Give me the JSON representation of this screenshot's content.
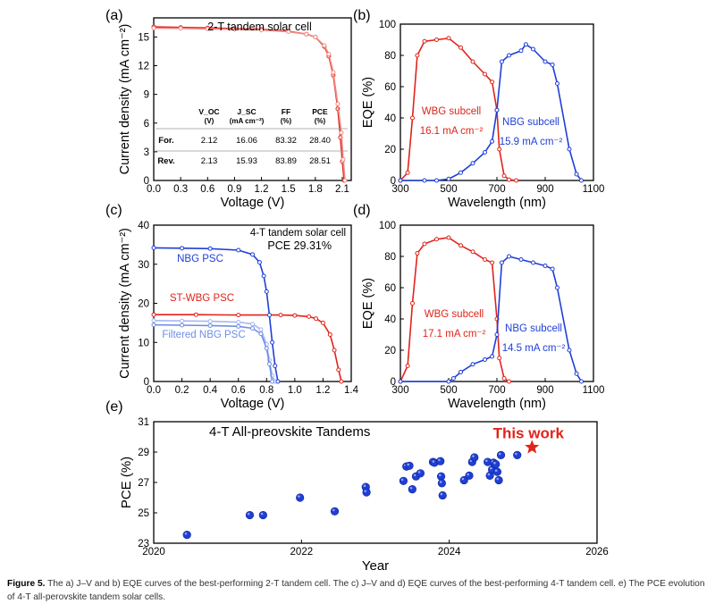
{
  "colors": {
    "red": "#e0241b",
    "blue": "#1f3fd6",
    "lightblue": "#6f8ee6",
    "star": "#e0241b",
    "axis": "#000000",
    "grid": "#bdbdbd"
  },
  "panels": {
    "a": "(a)",
    "b": "(b)",
    "c": "(c)",
    "d": "(d)",
    "e": "(e)"
  },
  "caption": {
    "label": "Figure 5.",
    "text": "The a) J–V and b) EQE curves of the best-performing 2-T tandem cell. The c) J–V and d) EQE curves of the best-performing 4-T tandem cell. e) The PCE evolution of 4-T all-perovskite tandem solar cells."
  },
  "chart_data": [
    {
      "id": "a",
      "type": "line",
      "title": "2-T tandem solar cell",
      "xlabel": "Voltage (V)",
      "ylabel": "Current density (mA cm⁻²)",
      "xlim": [
        0,
        2.2
      ],
      "ylim": [
        0,
        17
      ],
      "xticks": [
        0.0,
        0.3,
        0.6,
        0.9,
        1.2,
        1.5,
        1.8,
        2.1
      ],
      "yticks": [
        0,
        3,
        6,
        9,
        12,
        15
      ],
      "series": [
        {
          "x": [
            0,
            0.3,
            0.6,
            0.9,
            1.2,
            1.5,
            1.7,
            1.8,
            1.9,
            1.95,
            2.0,
            2.05,
            2.08,
            2.1,
            2.12
          ],
          "y": [
            16.06,
            16.0,
            15.95,
            15.88,
            15.8,
            15.6,
            15.3,
            15.0,
            14.0,
            13.0,
            11.0,
            7.5,
            4.5,
            2.0,
            0
          ]
        },
        {
          "x": [
            0,
            0.3,
            0.6,
            0.9,
            1.2,
            1.5,
            1.7,
            1.8,
            1.9,
            1.95,
            2.0,
            2.05,
            2.09,
            2.11,
            2.13
          ],
          "y": [
            15.93,
            15.9,
            15.85,
            15.8,
            15.72,
            15.55,
            15.3,
            15.0,
            14.1,
            13.2,
            11.3,
            8.0,
            5.0,
            2.2,
            0
          ]
        }
      ],
      "table": {
        "headers": [
          "",
          "V_OC (V)",
          "J_SC (mA cm⁻²)",
          "FF (%)",
          "PCE (%)"
        ],
        "rows": [
          [
            "For.",
            "2.12",
            "16.06",
            "83.32",
            "28.40"
          ],
          [
            "Rev.",
            "2.13",
            "15.93",
            "83.89",
            "28.51"
          ]
        ]
      }
    },
    {
      "id": "b",
      "type": "line",
      "xlabel": "Wavelength (nm)",
      "ylabel": "EQE (%)",
      "xlim": [
        300,
        1100
      ],
      "ylim": [
        0,
        100
      ],
      "xticks": [
        300,
        500,
        700,
        900,
        1100
      ],
      "yticks": [
        0,
        20,
        40,
        60,
        80,
        100
      ],
      "series": [
        {
          "name": "WBG subcell",
          "annotation": "16.1 mA cm⁻²",
          "x": [
            300,
            330,
            350,
            370,
            400,
            450,
            500,
            550,
            600,
            650,
            680,
            700,
            710,
            730,
            750,
            780
          ],
          "y": [
            0,
            5,
            40,
            80,
            89,
            90,
            91,
            85,
            76,
            68,
            63,
            45,
            20,
            3,
            0.5,
            0
          ]
        },
        {
          "name": "NBG subcell",
          "annotation": "15.9 mA cm⁻²",
          "x": [
            300,
            400,
            450,
            500,
            550,
            600,
            650,
            680,
            700,
            720,
            750,
            800,
            820,
            850,
            900,
            930,
            950,
            1000,
            1030,
            1050
          ],
          "y": [
            0,
            0,
            0,
            1,
            5,
            11,
            18,
            25,
            45,
            76,
            80,
            83,
            87,
            84,
            76,
            74,
            62,
            20,
            4,
            0
          ]
        }
      ]
    },
    {
      "id": "c",
      "type": "line",
      "xlabel": "Voltage (V)",
      "ylabel": "Current density (mA cm⁻²)",
      "xlim": [
        0,
        1.4
      ],
      "ylim": [
        0,
        40
      ],
      "xticks": [
        0.0,
        0.2,
        0.4,
        0.6,
        0.8,
        1.0,
        1.2,
        1.4
      ],
      "yticks": [
        0,
        10,
        20,
        30,
        40
      ],
      "texts": [
        "4-T tandem solar cell",
        "PCE 29.31%"
      ],
      "series": [
        {
          "name": "NBG PSC",
          "x": [
            0,
            0.2,
            0.4,
            0.6,
            0.7,
            0.75,
            0.78,
            0.8,
            0.82,
            0.84,
            0.86,
            0.88
          ],
          "y": [
            34.2,
            34.1,
            34.0,
            33.6,
            32.5,
            30.5,
            27,
            23,
            17,
            10,
            4,
            0
          ]
        },
        {
          "name": "ST-WBG PSC",
          "x": [
            0,
            0.3,
            0.6,
            0.9,
            1.0,
            1.1,
            1.15,
            1.2,
            1.25,
            1.28,
            1.31,
            1.33
          ],
          "y": [
            17.1,
            17.1,
            17.0,
            17.0,
            16.9,
            16.6,
            16.1,
            15.0,
            12.0,
            8.0,
            3.0,
            0
          ]
        },
        {
          "name": "Filtered NBG PSC",
          "x": [
            0,
            0.2,
            0.4,
            0.6,
            0.7,
            0.76,
            0.8,
            0.82,
            0.84
          ],
          "y": [
            14.5,
            14.4,
            14.3,
            14.1,
            13.6,
            12.2,
            8.5,
            4.5,
            0
          ]
        },
        {
          "x": [
            0,
            0.2,
            0.4,
            0.6,
            0.7,
            0.76,
            0.8,
            0.82,
            0.84,
            0.86
          ],
          "y": [
            15.6,
            15.5,
            15.4,
            15.2,
            14.7,
            13.3,
            9.5,
            5.5,
            1.5,
            0
          ]
        }
      ]
    },
    {
      "id": "d",
      "type": "line",
      "xlabel": "Wavelength (nm)",
      "ylabel": "EQE (%)",
      "xlim": [
        300,
        1100
      ],
      "ylim": [
        0,
        100
      ],
      "xticks": [
        300,
        500,
        700,
        900,
        1100
      ],
      "yticks": [
        0,
        20,
        40,
        60,
        80,
        100
      ],
      "series": [
        {
          "name": "WBG subcell",
          "annotation": "17.1 mA cm⁻²",
          "x": [
            300,
            330,
            350,
            370,
            400,
            450,
            500,
            550,
            600,
            650,
            680,
            700,
            710,
            730,
            750
          ],
          "y": [
            0,
            10,
            50,
            82,
            88,
            91,
            92,
            87,
            83,
            78,
            76,
            40,
            15,
            2,
            0
          ]
        },
        {
          "name": "NBG subcell",
          "annotation": "14.5 mA cm⁻²",
          "x": [
            300,
            500,
            520,
            550,
            600,
            650,
            680,
            700,
            720,
            750,
            800,
            850,
            900,
            930,
            950,
            1000,
            1030,
            1050
          ],
          "y": [
            0,
            0,
            2,
            6,
            11,
            14,
            16,
            30,
            76,
            80,
            78,
            76,
            74,
            72,
            60,
            20,
            5,
            0
          ]
        }
      ]
    },
    {
      "id": "e",
      "type": "scatter",
      "title": "4-T All-preovskite Tandems",
      "xlabel": "Year",
      "ylabel": "PCE (%)",
      "xlim": [
        2020,
        2026
      ],
      "ylim": [
        23,
        31
      ],
      "xticks": [
        2020,
        2022,
        2024,
        2026
      ],
      "yticks": [
        23,
        25,
        27,
        29,
        31
      ],
      "points": {
        "x": [
          2020.45,
          2021.3,
          2021.48,
          2021.98,
          2022.45,
          2022.87,
          2022.88,
          2023.38,
          2023.42,
          2023.46,
          2023.5,
          2023.55,
          2023.61,
          2023.78,
          2023.8,
          2023.88,
          2023.89,
          2023.9,
          2023.91,
          2024.2,
          2024.27,
          2024.31,
          2024.34,
          2024.52,
          2024.55,
          2024.58,
          2024.6,
          2024.63,
          2024.65,
          2024.67,
          2024.7,
          2024.92
        ],
        "y": [
          23.55,
          24.85,
          24.85,
          26.0,
          25.1,
          26.7,
          26.35,
          27.1,
          28.05,
          28.1,
          26.55,
          27.4,
          27.6,
          28.35,
          28.3,
          28.4,
          27.4,
          26.95,
          26.15,
          27.15,
          27.45,
          28.35,
          28.65,
          28.35,
          27.45,
          27.85,
          28.3,
          28.2,
          27.7,
          27.15,
          28.8,
          28.8
        ]
      },
      "highlight": {
        "x": 2025.12,
        "y": 29.31,
        "label": "This work"
      }
    }
  ]
}
